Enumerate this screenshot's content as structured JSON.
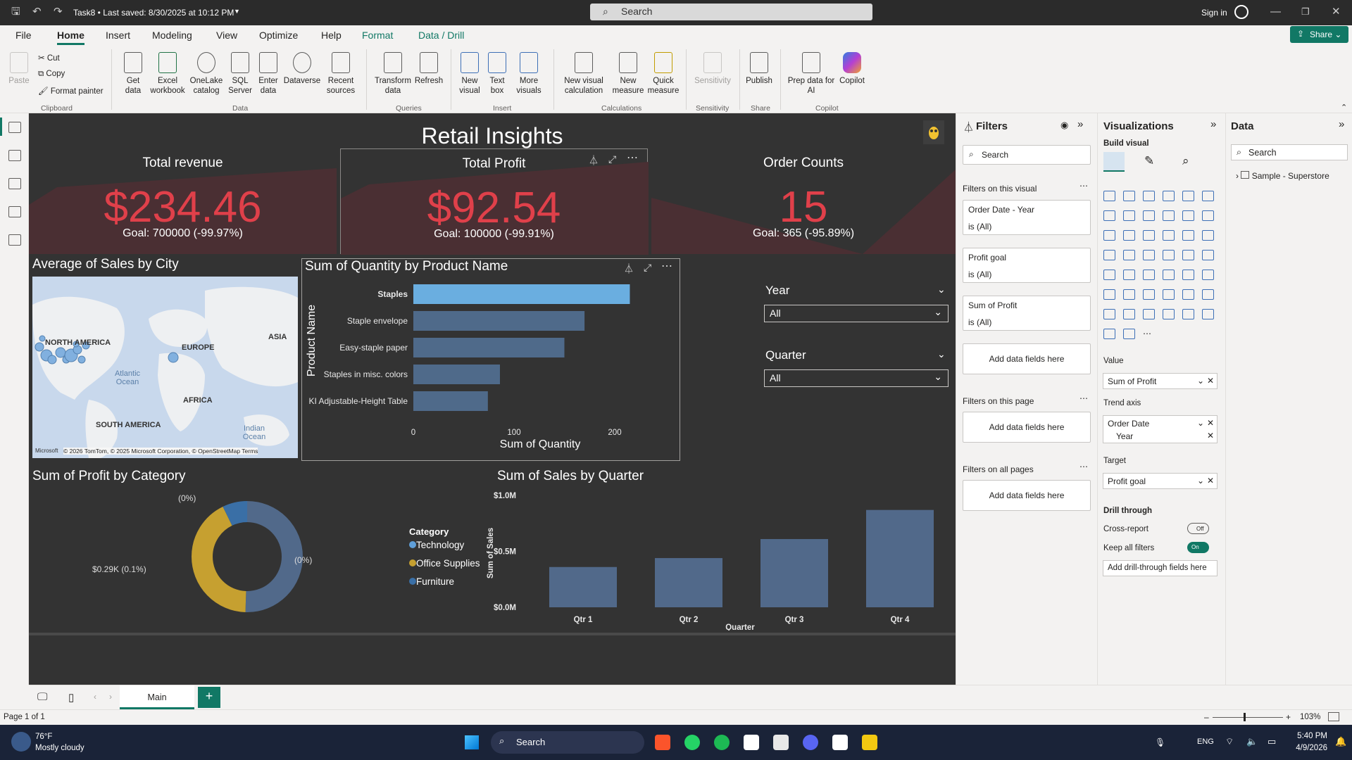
{
  "titlebar": {
    "title": "Task8 • Last saved: 8/30/2025 at 10:12 PM",
    "search_placeholder": "Search",
    "signin": "Sign in"
  },
  "menu": {
    "items": [
      "File",
      "Home",
      "Insert",
      "Modeling",
      "View",
      "Optimize",
      "Help",
      "Format",
      "Data / Drill"
    ],
    "share": "Share"
  },
  "ribbon": {
    "clipboard": {
      "paste": "Paste",
      "cut": "Cut",
      "copy": "Copy",
      "format_painter": "Format painter",
      "group": "Clipboard"
    },
    "data": {
      "get_data": "Get data",
      "excel": "Excel workbook",
      "onelake": "OneLake catalog",
      "sql": "SQL Server",
      "enter": "Enter data",
      "dataverse": "Dataverse",
      "recent": "Recent sources",
      "group": "Data"
    },
    "queries": {
      "transform": "Transform data",
      "refresh": "Refresh",
      "group": "Queries"
    },
    "insert": {
      "new_visual": "New visual",
      "text_box": "Text box",
      "more_visuals": "More visuals",
      "group": "Insert"
    },
    "calculations": {
      "new_calc": "New visual calculation",
      "new_measure": "New measure",
      "quick_measure": "Quick measure",
      "group": "Calculations"
    },
    "sensitivity": {
      "label": "Sensitivity",
      "group": "Sensitivity"
    },
    "share": {
      "publish": "Publish",
      "group": "Share"
    },
    "copilot": {
      "prep": "Prep data for AI",
      "copilot": "Copilot",
      "group": "Copilot"
    }
  },
  "report": {
    "title": "Retail Insights",
    "cards": [
      {
        "title": "Total revenue",
        "value": "$234.46",
        "goal": "Goal: 700000 (-99.97%)"
      },
      {
        "title": "Total Profit",
        "value": "$92.54",
        "goal": "Goal: 100000 (-99.91%)"
      },
      {
        "title": "Order Counts",
        "value": "15",
        "goal": "Goal: 365 (-95.89%)"
      }
    ],
    "map": {
      "title": "Average of Sales by City",
      "labels": [
        "NORTH AMERICA",
        "EUROPE",
        "ASIA",
        "Atlantic Ocean",
        "AFRICA",
        "SOUTH AMERICA",
        "Indian Ocean"
      ],
      "attribution": "© 2026 TomTom, © 2025 Microsoft Corporation, © OpenStreetMap  Terms",
      "brand": "Microsoft"
    },
    "slicers": [
      {
        "title": "Year",
        "value": "All"
      },
      {
        "title": "Quarter",
        "value": "All"
      }
    ],
    "donut": {
      "title": "Sum of Profit by Category",
      "labels": [
        "(0%)",
        "(0%)",
        "$0.29K (0.1%)"
      ],
      "legend_title": "Category",
      "legend": [
        {
          "name": "Technology",
          "color": "#5f9fd9"
        },
        {
          "name": "Office Supplies",
          "color": "#c6a030"
        },
        {
          "name": "Furniture",
          "color": "#3a6fa6"
        }
      ]
    }
  },
  "chart_data": [
    {
      "type": "bar",
      "orientation": "horizontal",
      "title": "Sum of Quantity by Product Name",
      "xlabel": "Sum of Quantity",
      "ylabel": "Product Name",
      "categories": [
        "Staples",
        "Staple envelope",
        "Easy-staple paper",
        "Staples in misc. colors",
        "KI Adjustable-Height Table"
      ],
      "values": [
        215,
        170,
        150,
        86,
        74
      ],
      "xticks": [
        "0",
        "100",
        "200"
      ],
      "xlim": [
        0,
        250
      ],
      "highlight_color": "#6aaee0",
      "bar_color": "#4f6a8a"
    },
    {
      "type": "bar",
      "title": "Sum of Sales by Quarter",
      "xlabel": "Quarter",
      "ylabel": "Sum of Sales",
      "categories": [
        "Qtr 1",
        "Qtr 2",
        "Qtr 3",
        "Qtr 4"
      ],
      "values": [
        0.36,
        0.44,
        0.61,
        0.87
      ],
      "yticks": [
        "$1.0M",
        "$0.5M",
        "$0.0M"
      ],
      "ylim": [
        0,
        1.0
      ],
      "bar_color": "#51698a"
    }
  ],
  "filters": {
    "title": "Filters",
    "search": "Search",
    "on_visual": "Filters on this visual",
    "cards": [
      {
        "name": "Order Date - Year",
        "state": "is (All)"
      },
      {
        "name": "Profit goal",
        "state": "is (All)"
      },
      {
        "name": "Sum of Profit",
        "state": "is (All)"
      }
    ],
    "add": "Add data fields here",
    "on_page": "Filters on this page",
    "on_all": "Filters on all pages"
  },
  "viz": {
    "title": "Visualizations",
    "build": "Build visual",
    "value_label": "Value",
    "value_field": "Sum of Profit",
    "trend_label": "Trend axis",
    "trend_field": "Order Date",
    "trend_sub": "Year",
    "target_label": "Target",
    "target_field": "Profit goal",
    "drill": "Drill through",
    "cross": "Cross-report",
    "cross_state": "Off",
    "keep": "Keep all filters",
    "keep_state": "On",
    "add_drill": "Add drill-through fields here"
  },
  "data_pane": {
    "title": "Data",
    "search": "Search",
    "table": "Sample - Superstore"
  },
  "pages": {
    "tab": "Main"
  },
  "status": {
    "page": "Page 1 of 1",
    "zoom": "103%"
  },
  "taskbar": {
    "temp": "76°F",
    "weather": "Mostly cloudy",
    "search": "Search",
    "lang": "ENG",
    "time": "5:40 PM",
    "date": "4/9/2026"
  }
}
